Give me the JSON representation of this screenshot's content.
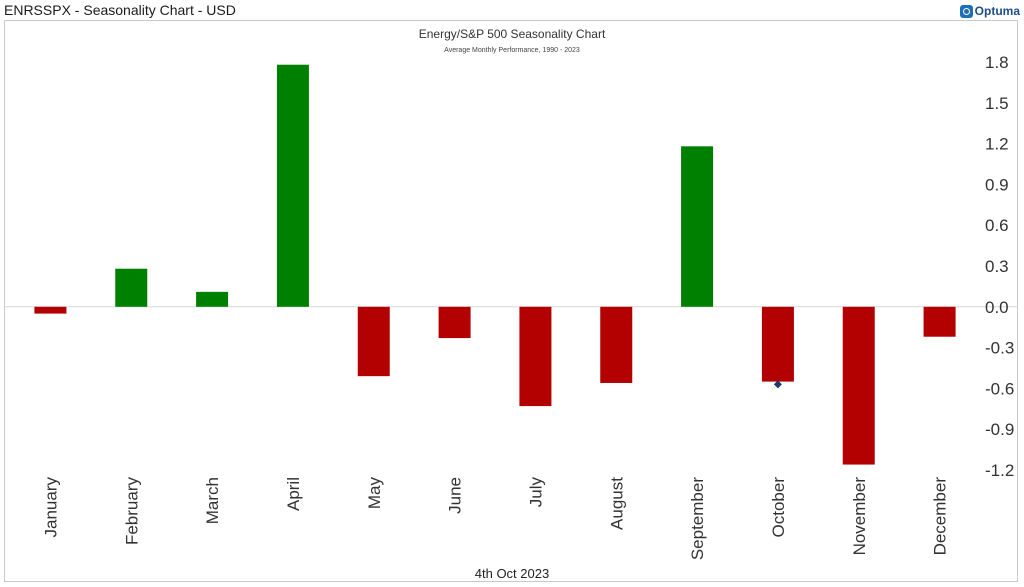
{
  "header": {
    "title": "ENRSSPX - Seasonality Chart - USD",
    "logo_text": "Optuma"
  },
  "footer": {
    "date": "4th Oct 2023"
  },
  "colors": {
    "positive": "#008000",
    "negative": "#b30000",
    "marker": "#1f3a68",
    "zero_line": "#d8d8d8"
  },
  "chart_data": {
    "type": "bar",
    "title": "Energy/S&P 500 Seasonality Chart",
    "subtitle": "Average Monthly Performance, 1990 - 2023",
    "xlabel": "",
    "ylabel": "",
    "ylim": [
      -1.2,
      1.8
    ],
    "yticks": [
      "1.8",
      "1.5",
      "1.2",
      "0.9",
      "0.6",
      "0.3",
      "0.0",
      "-0.3",
      "-0.6",
      "-0.9",
      "-1.2"
    ],
    "ytick_values": [
      1.8,
      1.5,
      1.2,
      0.9,
      0.6,
      0.3,
      0.0,
      -0.3,
      -0.6,
      -0.9,
      -1.2
    ],
    "categories": [
      "January",
      "February",
      "March",
      "April",
      "May",
      "June",
      "July",
      "August",
      "September",
      "October",
      "November",
      "December"
    ],
    "values": [
      -0.05,
      0.28,
      0.11,
      1.78,
      -0.51,
      -0.23,
      -0.73,
      -0.56,
      1.18,
      -0.55,
      -1.16,
      -0.22
    ],
    "current_marker": {
      "category": "October",
      "value": -0.57
    },
    "grid": false,
    "legend": "none"
  }
}
